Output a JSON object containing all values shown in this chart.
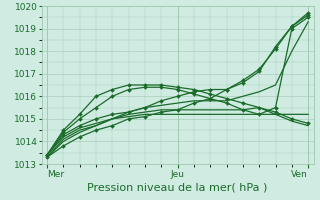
{
  "xlabel": "Pression niveau de la mer( hPa )",
  "bg_color": "#d0ece2",
  "grid_color": "#a0c8b0",
  "line_color": "#1a6b2a",
  "ylim": [
    1013,
    1020
  ],
  "yticks": [
    1013,
    1014,
    1015,
    1016,
    1017,
    1018,
    1019,
    1020
  ],
  "xtick_labels": [
    "Mer",
    "Jeu",
    "Ven"
  ],
  "xtick_positions": [
    0,
    24,
    48
  ],
  "xmin": -1,
  "xmax": 49,
  "lines": [
    [
      0,
      1013.3,
      3,
      1013.8,
      6,
      1014.2,
      9,
      1014.5,
      12,
      1014.7,
      15,
      1015.0,
      18,
      1015.1,
      21,
      1015.3,
      24,
      1015.4,
      27,
      1015.7,
      30,
      1015.9,
      33,
      1016.3,
      36,
      1016.7,
      39,
      1017.2,
      42,
      1018.1,
      45,
      1019.1,
      48,
      1019.6
    ],
    [
      0,
      1013.3,
      3,
      1014.1,
      6,
      1014.5,
      9,
      1014.7,
      12,
      1015.0,
      15,
      1015.2,
      18,
      1015.3,
      21,
      1015.4,
      24,
      1015.4,
      27,
      1015.4,
      30,
      1015.4,
      33,
      1015.4,
      36,
      1015.4,
      39,
      1015.5,
      42,
      1015.2,
      45,
      1014.9,
      48,
      1014.7
    ],
    [
      0,
      1013.4,
      3,
      1014.5,
      6,
      1015.2,
      9,
      1016.0,
      12,
      1016.3,
      15,
      1016.5,
      18,
      1016.5,
      21,
      1016.5,
      24,
      1016.4,
      27,
      1016.3,
      30,
      1016.1,
      33,
      1015.9,
      36,
      1015.7,
      39,
      1015.5,
      42,
      1015.3,
      45,
      1015.0,
      48,
      1014.8
    ],
    [
      0,
      1013.4,
      3,
      1014.2,
      6,
      1014.6,
      9,
      1014.8,
      12,
      1015.0,
      15,
      1015.1,
      18,
      1015.2,
      21,
      1015.2,
      24,
      1015.2,
      27,
      1015.2,
      30,
      1015.2,
      33,
      1015.2,
      36,
      1015.2,
      39,
      1015.2,
      42,
      1015.2,
      45,
      1015.2,
      48,
      1015.2
    ],
    [
      0,
      1013.4,
      3,
      1014.3,
      6,
      1014.7,
      9,
      1015.0,
      12,
      1015.2,
      15,
      1015.3,
      18,
      1015.5,
      21,
      1015.8,
      24,
      1016.0,
      27,
      1016.2,
      30,
      1016.3,
      33,
      1016.3,
      36,
      1016.6,
      39,
      1017.1,
      42,
      1018.2,
      45,
      1019.1,
      48,
      1019.7
    ],
    [
      0,
      1013.4,
      3,
      1014.4,
      6,
      1015.0,
      9,
      1015.5,
      12,
      1016.0,
      15,
      1016.3,
      18,
      1016.4,
      21,
      1016.4,
      24,
      1016.3,
      27,
      1016.1,
      30,
      1015.9,
      33,
      1015.7,
      36,
      1015.4,
      39,
      1015.2,
      42,
      1015.5,
      45,
      1019.0,
      48,
      1019.5
    ],
    [
      0,
      1013.3,
      3,
      1014.0,
      6,
      1014.4,
      9,
      1014.7,
      12,
      1015.0,
      15,
      1015.3,
      18,
      1015.5,
      21,
      1015.6,
      24,
      1015.7,
      27,
      1015.8,
      30,
      1015.8,
      33,
      1015.8,
      36,
      1016.0,
      39,
      1016.2,
      42,
      1016.5,
      45,
      1018.0,
      48,
      1019.3
    ]
  ],
  "marker_lines": [
    0,
    2,
    4,
    5
  ],
  "marker": "D",
  "markersize": 2.0,
  "linewidth": 0.9,
  "xlabel_fontsize": 8,
  "tick_fontsize": 6.5
}
